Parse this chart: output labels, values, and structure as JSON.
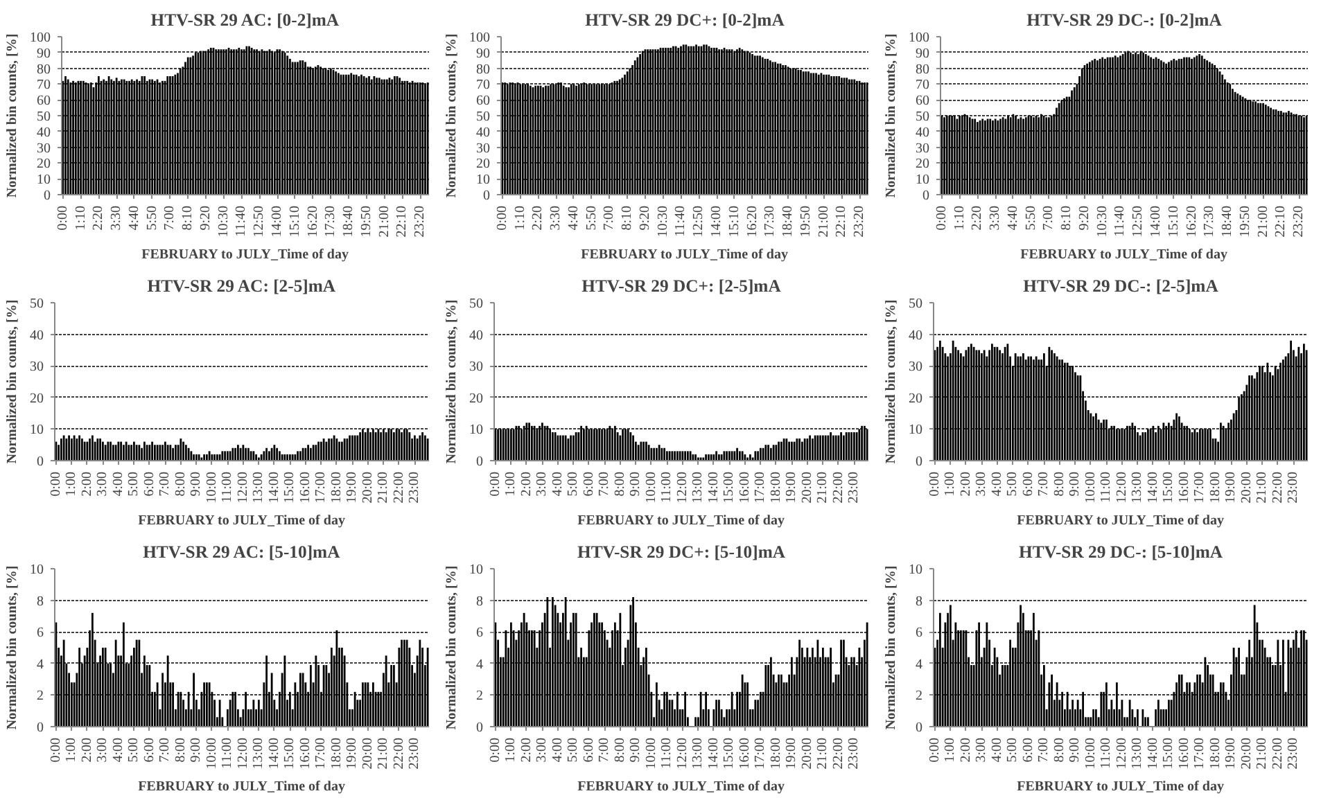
{
  "chart_data": [
    {
      "type": "bar",
      "title": "HTV-SR 29 AC: [0-2]mA",
      "xlabel": "FEBRUARY to JULY_Time of day",
      "ylabel": "Normalized bin counts, [%]",
      "color": "#000000",
      "ylim": [
        0,
        100
      ],
      "yticks": [
        0,
        10,
        20,
        30,
        40,
        50,
        60,
        70,
        80,
        90,
        100
      ],
      "grid": "y",
      "categories": [
        "0:00",
        null,
        null,
        null,
        null,
        null,
        null,
        "1:10",
        null,
        null,
        null,
        null,
        null,
        null,
        "2:20",
        null,
        null,
        null,
        null,
        null,
        null,
        "3:30",
        null,
        null,
        null,
        null,
        null,
        null,
        "4:40",
        null,
        null,
        null,
        null,
        null,
        null,
        "5:50",
        null,
        null,
        null,
        null,
        null,
        null,
        "7:00",
        null,
        null,
        null,
        null,
        null,
        null,
        "8:10",
        null,
        null,
        null,
        null,
        null,
        null,
        "9:20",
        null,
        null,
        null,
        null,
        null,
        null,
        "10:30",
        null,
        null,
        null,
        null,
        null,
        null,
        "11:40",
        null,
        null,
        null,
        null,
        null,
        null,
        "12:50",
        null,
        null,
        null,
        null,
        null,
        null,
        "14:00",
        null,
        null,
        null,
        null,
        null,
        null,
        "15:10",
        null,
        null,
        null,
        null,
        null,
        null,
        "16:20",
        null,
        null,
        null,
        null,
        null,
        null,
        "17:30",
        null,
        null,
        null,
        null,
        null,
        null,
        "18:40",
        null,
        null,
        null,
        null,
        null,
        null,
        "19:50",
        null,
        null,
        null,
        null,
        null,
        null,
        "21:00",
        null,
        null,
        null,
        null,
        null,
        null,
        "22:10",
        null,
        null,
        null,
        null,
        null,
        null,
        "23:20",
        null,
        null,
        null
      ],
      "values": [
        72,
        75,
        73,
        71,
        72,
        71,
        72,
        72,
        72,
        71,
        70,
        71,
        68,
        71,
        75,
        72,
        73,
        72,
        75,
        73,
        72,
        74,
        72,
        73,
        73,
        72,
        72,
        73,
        72,
        73,
        72,
        75,
        75,
        72,
        73,
        73,
        72,
        73,
        71,
        72,
        72,
        75,
        75,
        75,
        76,
        77,
        80,
        81,
        84,
        87,
        87,
        88,
        90,
        90,
        91,
        91,
        91,
        92,
        93,
        93,
        92,
        92,
        92,
        92,
        92,
        93,
        92,
        92,
        92,
        93,
        92,
        92,
        94,
        94,
        93,
        92,
        92,
        91,
        92,
        91,
        91,
        92,
        91,
        90,
        92,
        92,
        91,
        90,
        88,
        86,
        84,
        84,
        84,
        85,
        85,
        84,
        81,
        81,
        80,
        81,
        82,
        81,
        80,
        80,
        79,
        80,
        79,
        78,
        77,
        76,
        76,
        76,
        76,
        77,
        76,
        76,
        75,
        76,
        75,
        74,
        75,
        73,
        75,
        74,
        74,
        73,
        73,
        73,
        74,
        73,
        75,
        75,
        74,
        72,
        72,
        72,
        71,
        72,
        71,
        71,
        71,
        71,
        70,
        71
      ]
    },
    {
      "type": "bar",
      "title": "HTV-SR 29 DC+: [0-2]mA",
      "xlabel": "FEBRUARY to JULY_Time of day",
      "ylabel": "Normalized bin counts, [%]",
      "color": "#000000",
      "ylim": [
        0,
        100
      ],
      "yticks": [
        0,
        10,
        20,
        30,
        40,
        50,
        60,
        70,
        80,
        90,
        100
      ],
      "grid": "y",
      "categories": [
        "0:00",
        null,
        null,
        null,
        null,
        null,
        null,
        "1:10",
        null,
        null,
        null,
        null,
        null,
        null,
        "2:20",
        null,
        null,
        null,
        null,
        null,
        null,
        "3:30",
        null,
        null,
        null,
        null,
        null,
        null,
        "4:40",
        null,
        null,
        null,
        null,
        null,
        null,
        "5:50",
        null,
        null,
        null,
        null,
        null,
        null,
        "7:00",
        null,
        null,
        null,
        null,
        null,
        null,
        "8:10",
        null,
        null,
        null,
        null,
        null,
        null,
        "9:20",
        null,
        null,
        null,
        null,
        null,
        null,
        "10:30",
        null,
        null,
        null,
        null,
        null,
        null,
        "11:40",
        null,
        null,
        null,
        null,
        null,
        null,
        "12:50",
        null,
        null,
        null,
        null,
        null,
        null,
        "14:00",
        null,
        null,
        null,
        null,
        null,
        null,
        "15:10",
        null,
        null,
        null,
        null,
        null,
        null,
        "16:20",
        null,
        null,
        null,
        null,
        null,
        null,
        "17:30",
        null,
        null,
        null,
        null,
        null,
        null,
        "18:40",
        null,
        null,
        null,
        null,
        null,
        null,
        "19:50",
        null,
        null,
        null,
        null,
        null,
        null,
        "21:00",
        null,
        null,
        null,
        null,
        null,
        null,
        "22:10",
        null,
        null,
        null,
        null,
        null,
        null,
        "23:20",
        null,
        null,
        null
      ],
      "values": [
        71,
        71,
        70,
        71,
        71,
        70,
        71,
        70,
        70,
        70,
        70,
        69,
        68,
        69,
        69,
        69,
        68,
        69,
        69,
        70,
        70,
        70,
        71,
        71,
        69,
        68,
        68,
        70,
        70,
        69,
        70,
        70,
        71,
        70,
        70,
        70,
        70,
        70,
        70,
        70,
        70,
        70,
        70,
        71,
        72,
        72,
        73,
        74,
        76,
        78,
        80,
        82,
        85,
        87,
        89,
        91,
        92,
        92,
        92,
        92,
        92,
        92,
        93,
        93,
        93,
        93,
        93,
        94,
        94,
        93,
        94,
        95,
        95,
        94,
        94,
        94,
        95,
        94,
        94,
        95,
        95,
        94,
        93,
        93,
        93,
        92,
        92,
        93,
        92,
        92,
        92,
        91,
        92,
        93,
        92,
        91,
        91,
        90,
        89,
        88,
        88,
        88,
        87,
        86,
        86,
        85,
        84,
        84,
        83,
        83,
        82,
        82,
        81,
        80,
        80,
        80,
        79,
        79,
        78,
        78,
        78,
        77,
        77,
        77,
        76,
        77,
        76,
        76,
        76,
        75,
        75,
        75,
        75,
        74,
        74,
        74,
        73,
        73,
        73,
        72,
        72,
        71,
        71,
        71
      ]
    },
    {
      "type": "bar",
      "title": "HTV-SR 29 DC-: [0-2]mA",
      "xlabel": "FEBRUARY to JULY_Time of day",
      "ylabel": "Normalized bin counts, [%]",
      "color": "#000000",
      "ylim": [
        0,
        100
      ],
      "yticks": [
        0,
        10,
        20,
        30,
        40,
        50,
        60,
        70,
        80,
        90,
        100
      ],
      "grid": "y",
      "categories": [
        "0:00",
        null,
        null,
        null,
        null,
        null,
        null,
        "1:10",
        null,
        null,
        null,
        null,
        null,
        null,
        "2:20",
        null,
        null,
        null,
        null,
        null,
        null,
        "3:30",
        null,
        null,
        null,
        null,
        null,
        null,
        "4:40",
        null,
        null,
        null,
        null,
        null,
        null,
        "5:50",
        null,
        null,
        null,
        null,
        null,
        null,
        "7:00",
        null,
        null,
        null,
        null,
        null,
        null,
        "8:10",
        null,
        null,
        null,
        null,
        null,
        null,
        "9:20",
        null,
        null,
        null,
        null,
        null,
        null,
        "10:30",
        null,
        null,
        null,
        null,
        null,
        null,
        "11:40",
        null,
        null,
        null,
        null,
        null,
        null,
        "12:50",
        null,
        null,
        null,
        null,
        null,
        null,
        "14:00",
        null,
        null,
        null,
        null,
        null,
        null,
        "15:10",
        null,
        null,
        null,
        null,
        null,
        null,
        "16:20",
        null,
        null,
        null,
        null,
        null,
        null,
        "17:30",
        null,
        null,
        null,
        null,
        null,
        null,
        "18:40",
        null,
        null,
        null,
        null,
        null,
        null,
        "19:50",
        null,
        null,
        null,
        null,
        null,
        null,
        "21:00",
        null,
        null,
        null,
        null,
        null,
        null,
        "22:10",
        null,
        null,
        null,
        null,
        null,
        null,
        "23:20",
        null,
        null,
        null
      ],
      "values": [
        50,
        49,
        50,
        50,
        50,
        50,
        48,
        50,
        50,
        51,
        50,
        49,
        48,
        48,
        46,
        47,
        48,
        47,
        48,
        48,
        47,
        48,
        47,
        48,
        49,
        48,
        50,
        49,
        51,
        50,
        48,
        49,
        48,
        49,
        50,
        50,
        49,
        50,
        49,
        51,
        50,
        49,
        49,
        50,
        51,
        55,
        58,
        60,
        61,
        62,
        62,
        66,
        68,
        70,
        75,
        80,
        82,
        83,
        84,
        85,
        86,
        85,
        86,
        87,
        86,
        87,
        87,
        87,
        88,
        87,
        88,
        89,
        90,
        91,
        90,
        89,
        90,
        89,
        91,
        90,
        89,
        88,
        87,
        86,
        87,
        86,
        85,
        84,
        83,
        84,
        85,
        86,
        85,
        86,
        86,
        87,
        87,
        87,
        86,
        87,
        88,
        89,
        88,
        86,
        85,
        84,
        83,
        82,
        80,
        78,
        76,
        73,
        71,
        70,
        67,
        65,
        64,
        63,
        62,
        61,
        60,
        60,
        59,
        59,
        58,
        58,
        58,
        57,
        56,
        55,
        54,
        54,
        53,
        53,
        52,
        52,
        53,
        52,
        51,
        51,
        50,
        50,
        49,
        50
      ]
    },
    {
      "type": "bar",
      "title": "HTV-SR 29 AC: [2-5]mA",
      "xlabel": "FEBRUARY to JULY_Time of day",
      "ylabel": "Normalized bin counts, [%]",
      "color": "#000000",
      "ylim": [
        0,
        50
      ],
      "yticks": [
        0,
        10,
        20,
        30,
        40,
        50
      ],
      "grid": "y",
      "categories": [
        "0:00",
        null,
        null,
        null,
        null,
        null,
        "1:00",
        null,
        null,
        null,
        null,
        null,
        "2:00",
        null,
        null,
        null,
        null,
        null,
        "3:00",
        null,
        null,
        null,
        null,
        null,
        "4:00",
        null,
        null,
        null,
        null,
        null,
        "5:00",
        null,
        null,
        null,
        null,
        null,
        "6:00",
        null,
        null,
        null,
        null,
        null,
        "7:00",
        null,
        null,
        null,
        null,
        null,
        "8:00",
        null,
        null,
        null,
        null,
        null,
        "9:00",
        null,
        null,
        null,
        null,
        null,
        "10:00",
        null,
        null,
        null,
        null,
        null,
        "11:00",
        null,
        null,
        null,
        null,
        null,
        "12:00",
        null,
        null,
        null,
        null,
        null,
        "13:00",
        null,
        null,
        null,
        null,
        null,
        "14:00",
        null,
        null,
        null,
        null,
        null,
        "15:00",
        null,
        null,
        null,
        null,
        null,
        "16:00",
        null,
        null,
        null,
        null,
        null,
        "17:00",
        null,
        null,
        null,
        null,
        null,
        "18:00",
        null,
        null,
        null,
        null,
        null,
        "19:00",
        null,
        null,
        null,
        null,
        null,
        "20:00",
        null,
        null,
        null,
        null,
        null,
        "21:00",
        null,
        null,
        null,
        null,
        null,
        "22:00",
        null,
        null,
        null,
        null,
        null,
        "23:00",
        null,
        null,
        null,
        null,
        null
      ],
      "values": [
        6,
        5,
        7,
        8,
        7,
        8,
        7,
        8,
        7,
        8,
        7,
        6,
        6,
        7,
        8,
        6,
        7,
        7,
        6,
        5,
        6,
        6,
        5,
        5,
        6,
        6,
        5,
        6,
        5,
        5,
        6,
        5,
        5,
        4,
        6,
        5,
        5,
        6,
        5,
        5,
        5,
        5,
        6,
        5,
        5,
        4,
        5,
        5,
        7,
        6,
        5,
        4,
        3,
        2,
        2,
        2,
        1,
        2,
        2,
        3,
        2,
        2,
        2,
        2,
        3,
        3,
        3,
        3,
        4,
        4,
        5,
        4,
        5,
        4,
        4,
        3,
        3,
        2,
        1,
        2,
        3,
        4,
        3,
        4,
        5,
        4,
        3,
        2,
        2,
        2,
        2,
        2,
        2,
        3,
        3,
        4,
        4,
        5,
        4,
        5,
        5,
        6,
        6,
        7,
        6,
        7,
        7,
        8,
        7,
        6,
        6,
        7,
        7,
        8,
        8,
        8,
        8,
        9,
        10,
        9,
        10,
        9,
        10,
        9,
        10,
        9,
        10,
        9,
        10,
        10,
        9,
        10,
        10,
        9,
        10,
        10,
        9,
        7,
        8,
        7,
        8,
        9,
        8,
        7
      ]
    },
    {
      "type": "bar",
      "title": "HTV-SR 29 DC+: [2-5]mA",
      "xlabel": "FEBRUARY to JULY_Time of day",
      "ylabel": "Normalized bin counts, [%]",
      "color": "#000000",
      "ylim": [
        0,
        50
      ],
      "yticks": [
        0,
        10,
        20,
        30,
        40,
        50
      ],
      "grid": "y",
      "categories": [
        "0:00",
        null,
        null,
        null,
        null,
        null,
        "1:00",
        null,
        null,
        null,
        null,
        null,
        "2:00",
        null,
        null,
        null,
        null,
        null,
        "3:00",
        null,
        null,
        null,
        null,
        null,
        "4:00",
        null,
        null,
        null,
        null,
        null,
        "5:00",
        null,
        null,
        null,
        null,
        null,
        "6:00",
        null,
        null,
        null,
        null,
        null,
        "7:00",
        null,
        null,
        null,
        null,
        null,
        "8:00",
        null,
        null,
        null,
        null,
        null,
        "9:00",
        null,
        null,
        null,
        null,
        null,
        "10:00",
        null,
        null,
        null,
        null,
        null,
        "11:00",
        null,
        null,
        null,
        null,
        null,
        "12:00",
        null,
        null,
        null,
        null,
        null,
        "13:00",
        null,
        null,
        null,
        null,
        null,
        "14:00",
        null,
        null,
        null,
        null,
        null,
        "15:00",
        null,
        null,
        null,
        null,
        null,
        "16:00",
        null,
        null,
        null,
        null,
        null,
        "17:00",
        null,
        null,
        null,
        null,
        null,
        "18:00",
        null,
        null,
        null,
        null,
        null,
        "19:00",
        null,
        null,
        null,
        null,
        null,
        "20:00",
        null,
        null,
        null,
        null,
        null,
        "21:00",
        null,
        null,
        null,
        null,
        null,
        "22:00",
        null,
        null,
        null,
        null,
        null,
        "23:00",
        null,
        null,
        null,
        null,
        null
      ],
      "values": [
        10,
        10,
        10,
        10,
        10,
        10,
        10,
        10,
        11,
        11,
        10,
        11,
        12,
        12,
        11,
        11,
        10,
        11,
        12,
        11,
        11,
        10,
        9,
        9,
        8,
        8,
        8,
        8,
        7,
        8,
        8,
        9,
        9,
        11,
        10,
        11,
        10,
        10,
        10,
        10,
        10,
        10,
        10,
        10,
        11,
        10,
        11,
        9,
        8,
        10,
        10,
        10,
        9,
        8,
        6,
        5,
        6,
        6,
        6,
        5,
        4,
        4,
        4,
        5,
        4,
        4,
        3,
        3,
        3,
        3,
        3,
        3,
        3,
        3,
        3,
        3,
        2,
        2,
        1,
        1,
        1,
        2,
        2,
        2,
        2,
        3,
        2,
        2,
        3,
        3,
        3,
        3,
        3,
        4,
        3,
        3,
        2,
        1,
        2,
        1,
        3,
        3,
        4,
        4,
        5,
        5,
        4,
        5,
        5,
        6,
        6,
        7,
        7,
        6,
        6,
        6,
        7,
        7,
        6,
        7,
        7,
        8,
        7,
        8,
        8,
        8,
        8,
        8,
        8,
        9,
        8,
        8,
        8,
        9,
        8,
        9,
        9,
        9,
        9,
        9,
        10,
        11,
        11,
        10
      ]
    },
    {
      "type": "bar",
      "title": "HTV-SR 29 DC-: [2-5]mA",
      "xlabel": "FEBRUARY to JULY_Time of day",
      "ylabel": "Normalized bin counts, [%]",
      "color": "#000000",
      "ylim": [
        0,
        50
      ],
      "yticks": [
        0,
        10,
        20,
        30,
        40,
        50
      ],
      "grid": "y",
      "categories": [
        "0:00",
        null,
        null,
        null,
        null,
        null,
        "1:00",
        null,
        null,
        null,
        null,
        null,
        "2:00",
        null,
        null,
        null,
        null,
        null,
        "3:00",
        null,
        null,
        null,
        null,
        null,
        "4:00",
        null,
        null,
        null,
        null,
        null,
        "5:00",
        null,
        null,
        null,
        null,
        null,
        "6:00",
        null,
        null,
        null,
        null,
        null,
        "7:00",
        null,
        null,
        null,
        null,
        null,
        "8:00",
        null,
        null,
        null,
        null,
        null,
        "9:00",
        null,
        null,
        null,
        null,
        null,
        "10:00",
        null,
        null,
        null,
        null,
        null,
        "11:00",
        null,
        null,
        null,
        null,
        null,
        "12:00",
        null,
        null,
        null,
        null,
        null,
        "13:00",
        null,
        null,
        null,
        null,
        null,
        "14:00",
        null,
        null,
        null,
        null,
        null,
        "15:00",
        null,
        null,
        null,
        null,
        null,
        "16:00",
        null,
        null,
        null,
        null,
        null,
        "17:00",
        null,
        null,
        null,
        null,
        null,
        "18:00",
        null,
        null,
        null,
        null,
        null,
        "19:00",
        null,
        null,
        null,
        null,
        null,
        "20:00",
        null,
        null,
        null,
        null,
        null,
        "21:00",
        null,
        null,
        null,
        null,
        null,
        "22:00",
        null,
        null,
        null,
        null,
        null,
        "23:00",
        null,
        null,
        null,
        null,
        null
      ],
      "values": [
        35,
        36,
        38,
        36,
        34,
        33,
        34,
        38,
        36,
        35,
        34,
        33,
        35,
        36,
        37,
        36,
        35,
        35,
        34,
        35,
        33,
        35,
        37,
        36,
        36,
        35,
        34,
        36,
        37,
        33,
        30,
        34,
        33,
        33,
        34,
        32,
        33,
        33,
        32,
        33,
        32,
        32,
        34,
        30,
        36,
        35,
        34,
        33,
        32,
        32,
        31,
        31,
        30,
        30,
        28,
        27,
        27,
        22,
        19,
        16,
        15,
        14,
        15,
        13,
        12,
        13,
        13,
        10,
        11,
        11,
        10,
        10,
        10,
        10,
        11,
        11,
        12,
        11,
        9,
        8,
        9,
        9,
        10,
        10,
        11,
        9,
        11,
        10,
        12,
        11,
        12,
        11,
        13,
        15,
        14,
        12,
        11,
        11,
        10,
        9,
        10,
        9,
        10,
        10,
        10,
        10,
        10,
        7,
        7,
        6,
        12,
        11,
        10,
        12,
        13,
        15,
        16,
        20,
        21,
        22,
        24,
        27,
        27,
        26,
        28,
        30,
        30,
        28,
        31,
        28,
        27,
        30,
        29,
        31,
        32,
        33,
        34,
        38,
        35,
        33,
        36,
        34,
        37,
        35
      ]
    },
    {
      "type": "bar",
      "title": "HTV-SR 29 AC: [5-10]mA",
      "xlabel": "FEBRUARY to JULY_Time of day",
      "ylabel": "Normalized bin counts, [%]",
      "color": "#000000",
      "ylim": [
        0,
        10
      ],
      "yticks": [
        0,
        2,
        4,
        6,
        8,
        10
      ],
      "grid": "y",
      "categories": [
        "0:00",
        null,
        null,
        null,
        null,
        null,
        "1:00",
        null,
        null,
        null,
        null,
        null,
        "2:00",
        null,
        null,
        null,
        null,
        null,
        "3:00",
        null,
        null,
        null,
        null,
        null,
        "4:00",
        null,
        null,
        null,
        null,
        null,
        "5:00",
        null,
        null,
        null,
        null,
        null,
        "6:00",
        null,
        null,
        null,
        null,
        null,
        "7:00",
        null,
        null,
        null,
        null,
        null,
        "8:00",
        null,
        null,
        null,
        null,
        null,
        "9:00",
        null,
        null,
        null,
        null,
        null,
        "10:00",
        null,
        null,
        null,
        null,
        null,
        "11:00",
        null,
        null,
        null,
        null,
        null,
        "12:00",
        null,
        null,
        null,
        null,
        null,
        "13:00",
        null,
        null,
        null,
        null,
        null,
        "14:00",
        null,
        null,
        null,
        null,
        null,
        "15:00",
        null,
        null,
        null,
        null,
        null,
        "16:00",
        null,
        null,
        null,
        null,
        null,
        "17:00",
        null,
        null,
        null,
        null,
        null,
        "18:00",
        null,
        null,
        null,
        null,
        null,
        "19:00",
        null,
        null,
        null,
        null,
        null,
        "20:00",
        null,
        null,
        null,
        null,
        null,
        "21:00",
        null,
        null,
        null,
        null,
        null,
        "22:00",
        null,
        null,
        null,
        null,
        null,
        "23:00",
        null,
        null,
        null,
        null,
        null
      ],
      "values": [
        6.6,
        5,
        4.5,
        5.5,
        4,
        3.4,
        2.8,
        2.8,
        3.4,
        5,
        4,
        4.5,
        5,
        6.1,
        7.2,
        5.5,
        4,
        4.5,
        5,
        5,
        4,
        4,
        3.4,
        5.5,
        4.5,
        4.5,
        6.6,
        4,
        4,
        4.5,
        5,
        5.5,
        5.5,
        3.4,
        4.5,
        3.9,
        3.9,
        2.2,
        2.2,
        2.8,
        1.1,
        3.4,
        2.8,
        4.5,
        2.8,
        2.8,
        1.1,
        2.2,
        2.2,
        1.7,
        1.1,
        2.2,
        1.1,
        3.4,
        1.7,
        1.1,
        2.2,
        2.8,
        2.8,
        2.8,
        2.2,
        1.7,
        0.6,
        1.7,
        0.6,
        0,
        1.1,
        1.7,
        2.2,
        2.2,
        1.1,
        0.6,
        1.1,
        2.2,
        1.1,
        1.1,
        1.7,
        1.1,
        1.7,
        1.1,
        2.8,
        4.5,
        2.2,
        3.4,
        1.7,
        1.1,
        2.2,
        3.4,
        4.5,
        1.7,
        2.2,
        1.1,
        2.8,
        2.2,
        3.4,
        3.4,
        2.8,
        2.2,
        3.9,
        2.8,
        4.5,
        3.9,
        2.2,
        3.9,
        3.9,
        3.4,
        5,
        4.5,
        6.1,
        5,
        5,
        4.5,
        2.8,
        1.1,
        1.1,
        2.2,
        1.7,
        1.7,
        2.8,
        2.8,
        2.8,
        2.2,
        2.8,
        2.2,
        2.2,
        2.2,
        3.4,
        4.5,
        2.8,
        3.9,
        3.9,
        2.8,
        5,
        5.5,
        5.5,
        5.5,
        5,
        3.9,
        3.4,
        4.5,
        5.5,
        5,
        3.9,
        5
      ]
    },
    {
      "type": "bar",
      "title": "HTV-SR 29 DC+: [5-10]mA",
      "xlabel": "FEBRUARY to JULY_Time of day",
      "ylabel": "Normalized bin counts, [%]",
      "color": "#000000",
      "ylim": [
        0,
        10
      ],
      "yticks": [
        0,
        2,
        4,
        6,
        8,
        10
      ],
      "grid": "y",
      "categories": [
        "0:00",
        null,
        null,
        null,
        null,
        null,
        "1:00",
        null,
        null,
        null,
        null,
        null,
        "2:00",
        null,
        null,
        null,
        null,
        null,
        "3:00",
        null,
        null,
        null,
        null,
        null,
        "4:00",
        null,
        null,
        null,
        null,
        null,
        "5:00",
        null,
        null,
        null,
        null,
        null,
        "6:00",
        null,
        null,
        null,
        null,
        null,
        "7:00",
        null,
        null,
        null,
        null,
        null,
        "8:00",
        null,
        null,
        null,
        null,
        null,
        "9:00",
        null,
        null,
        null,
        null,
        null,
        "10:00",
        null,
        null,
        null,
        null,
        null,
        "11:00",
        null,
        null,
        null,
        null,
        null,
        "12:00",
        null,
        null,
        null,
        null,
        null,
        "13:00",
        null,
        null,
        null,
        null,
        null,
        "14:00",
        null,
        null,
        null,
        null,
        null,
        "15:00",
        null,
        null,
        null,
        null,
        null,
        "16:00",
        null,
        null,
        null,
        null,
        null,
        "17:00",
        null,
        null,
        null,
        null,
        null,
        "18:00",
        null,
        null,
        null,
        null,
        null,
        "19:00",
        null,
        null,
        null,
        null,
        null,
        "20:00",
        null,
        null,
        null,
        null,
        null,
        "21:00",
        null,
        null,
        null,
        null,
        null,
        "22:00",
        null,
        null,
        null,
        null,
        null,
        "23:00",
        null,
        null,
        null,
        null,
        null
      ],
      "values": [
        6.6,
        5.5,
        4.4,
        4.4,
        6.1,
        5,
        6.6,
        6.1,
        5.5,
        6.1,
        6.6,
        7.2,
        6.6,
        6.1,
        6.1,
        6.1,
        5,
        6.1,
        6.6,
        7.2,
        8.2,
        5,
        8.2,
        7.7,
        7.2,
        6.6,
        7.2,
        8.2,
        5.5,
        6.6,
        7.2,
        7.2,
        4.4,
        5,
        4.4,
        4.4,
        6.1,
        6.6,
        7.2,
        7.2,
        6.6,
        6.6,
        6.1,
        5.5,
        5,
        6.1,
        6.6,
        6.1,
        7.2,
        3.9,
        5,
        5.5,
        7.7,
        8.2,
        6.6,
        5,
        3.9,
        4.4,
        5,
        3.3,
        2.2,
        0.6,
        2.8,
        1.7,
        1.1,
        2.2,
        2.2,
        1.7,
        1.7,
        1.1,
        2.2,
        1.1,
        1.1,
        2.2,
        0.6,
        0,
        0,
        0.6,
        0.6,
        2.2,
        1.1,
        2.2,
        1.1,
        0,
        1.1,
        1.7,
        1.7,
        1.1,
        0.6,
        1.1,
        1.1,
        2.2,
        1.1,
        2.2,
        2.2,
        3.3,
        2.8,
        2.8,
        1.1,
        1.1,
        1.7,
        1.7,
        2.2,
        2.2,
        3.9,
        3.9,
        4.4,
        3.3,
        2.8,
        3.3,
        3.3,
        2.8,
        2.8,
        3.3,
        4.4,
        3.3,
        4.4,
        5.5,
        5,
        4.4,
        5,
        4.4,
        5,
        4.4,
        5.5,
        4.4,
        5,
        4.4,
        4.4,
        5,
        2.8,
        3.3,
        3.3,
        5.5,
        5.5,
        4.4,
        3.9,
        4.4,
        4.4,
        3.9,
        5,
        4.4,
        5.5,
        6.6
      ]
    },
    {
      "type": "bar",
      "title": "HTV-SR 29 DC-: [5-10]mA",
      "xlabel": "FEBRUARY to JULY_Time of day",
      "ylabel": "Normalized bin counts, [%]",
      "color": "#000000",
      "ylim": [
        0,
        10
      ],
      "yticks": [
        0,
        2,
        4,
        6,
        8,
        10
      ],
      "grid": "y",
      "categories": [
        "0:00",
        null,
        null,
        null,
        null,
        null,
        "1:00",
        null,
        null,
        null,
        null,
        null,
        "2:00",
        null,
        null,
        null,
        null,
        null,
        "3:00",
        null,
        null,
        null,
        null,
        null,
        "4:00",
        null,
        null,
        null,
        null,
        null,
        "5:00",
        null,
        null,
        null,
        null,
        null,
        "6:00",
        null,
        null,
        null,
        null,
        null,
        "7:00",
        null,
        null,
        null,
        null,
        null,
        "8:00",
        null,
        null,
        null,
        null,
        null,
        "9:00",
        null,
        null,
        null,
        null,
        null,
        "10:00",
        null,
        null,
        null,
        null,
        null,
        "11:00",
        null,
        null,
        null,
        null,
        null,
        "12:00",
        null,
        null,
        null,
        null,
        null,
        "13:00",
        null,
        null,
        null,
        null,
        null,
        "14:00",
        null,
        null,
        null,
        null,
        null,
        "15:00",
        null,
        null,
        null,
        null,
        null,
        "16:00",
        null,
        null,
        null,
        null,
        null,
        "17:00",
        null,
        null,
        null,
        null,
        null,
        "18:00",
        null,
        null,
        null,
        null,
        null,
        "19:00",
        null,
        null,
        null,
        null,
        null,
        "20:00",
        null,
        null,
        null,
        null,
        null,
        "21:00",
        null,
        null,
        null,
        null,
        null,
        "22:00",
        null,
        null,
        null,
        null,
        null,
        "23:00",
        null,
        null,
        null,
        null,
        null
      ],
      "values": [
        5,
        5.5,
        7.2,
        5,
        6.6,
        7.2,
        7.7,
        5.5,
        6.6,
        6.1,
        6.1,
        6.1,
        6.1,
        4.4,
        3.9,
        3.9,
        6.1,
        6.6,
        4.4,
        5,
        6.6,
        5.5,
        3.9,
        5,
        4.4,
        3.3,
        3.9,
        3.9,
        3.9,
        5.5,
        5,
        5,
        6.6,
        7.7,
        7.2,
        6.1,
        6.1,
        6.1,
        7.2,
        5.5,
        6.1,
        3.3,
        3.9,
        1.1,
        2.8,
        3.3,
        1.7,
        2.8,
        1.7,
        2.2,
        1.1,
        2.2,
        1.1,
        1.7,
        1.1,
        1.7,
        1.1,
        2.2,
        0.6,
        0.6,
        0.6,
        1.1,
        1.1,
        0.6,
        2.2,
        2.2,
        2.8,
        1.1,
        1.7,
        1.1,
        2.8,
        1.1,
        1.7,
        0.6,
        0.6,
        1.7,
        1.1,
        0.6,
        1.1,
        0,
        1.1,
        0.6,
        0.6,
        0,
        0,
        1.1,
        1.7,
        1.1,
        1.1,
        1.1,
        1.7,
        1.7,
        2.2,
        2.8,
        3.3,
        3.3,
        2.2,
        2.8,
        2.8,
        2.2,
        2.8,
        3.3,
        3.3,
        2.8,
        4.4,
        3.9,
        3.3,
        3.3,
        2.2,
        2.2,
        2.8,
        2.8,
        2.2,
        1.7,
        3.3,
        5,
        4.4,
        5,
        3.3,
        3.3,
        4.4,
        5.5,
        4.4,
        7.7,
        6.6,
        5.5,
        5.5,
        5,
        4.4,
        4.4,
        3.9,
        3.9,
        5.5,
        3.9,
        5.5,
        2.2,
        5.5,
        5,
        5.5,
        6.1,
        5,
        6.1,
        6.1,
        5.5
      ]
    }
  ]
}
